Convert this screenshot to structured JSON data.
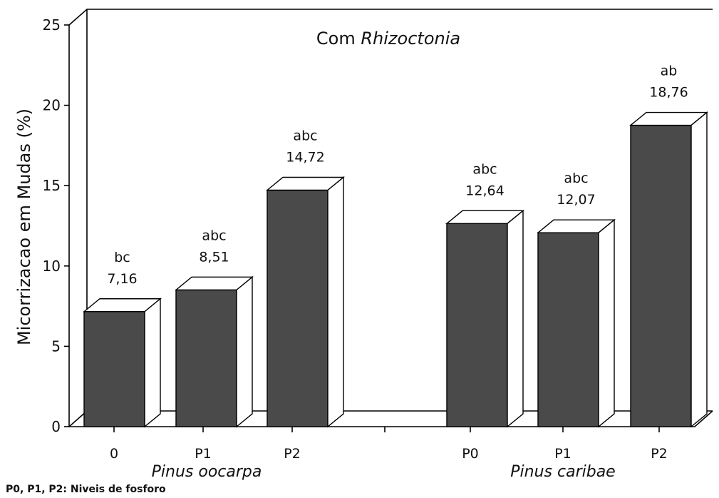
{
  "chart_data": {
    "type": "bar3d",
    "title": [
      "Com",
      "Rhizoctonia"
    ],
    "y_label": "Micorrizacao em Mudas (%)",
    "categories": [
      "0",
      "P1",
      "P2",
      "P0",
      "P1",
      "P2"
    ],
    "groups": [
      "Pinus oocarpa",
      "Pinus caribae"
    ],
    "values": [
      7.16,
      8.51,
      14.72,
      12.64,
      12.07,
      18.76
    ],
    "value_labels": [
      "7,16",
      "8,51",
      "14,72",
      "12,64",
      "12,07",
      "18,76"
    ],
    "letters": [
      "bc",
      "abc",
      "abc",
      "abc",
      "abc",
      "ab"
    ],
    "color": "#4a4a4a",
    "ylim": [
      0,
      25
    ],
    "yticks": [
      0,
      5,
      10,
      15,
      20,
      25
    ],
    "footnote": "P0, P1, P2: Niveis de fosforo"
  }
}
